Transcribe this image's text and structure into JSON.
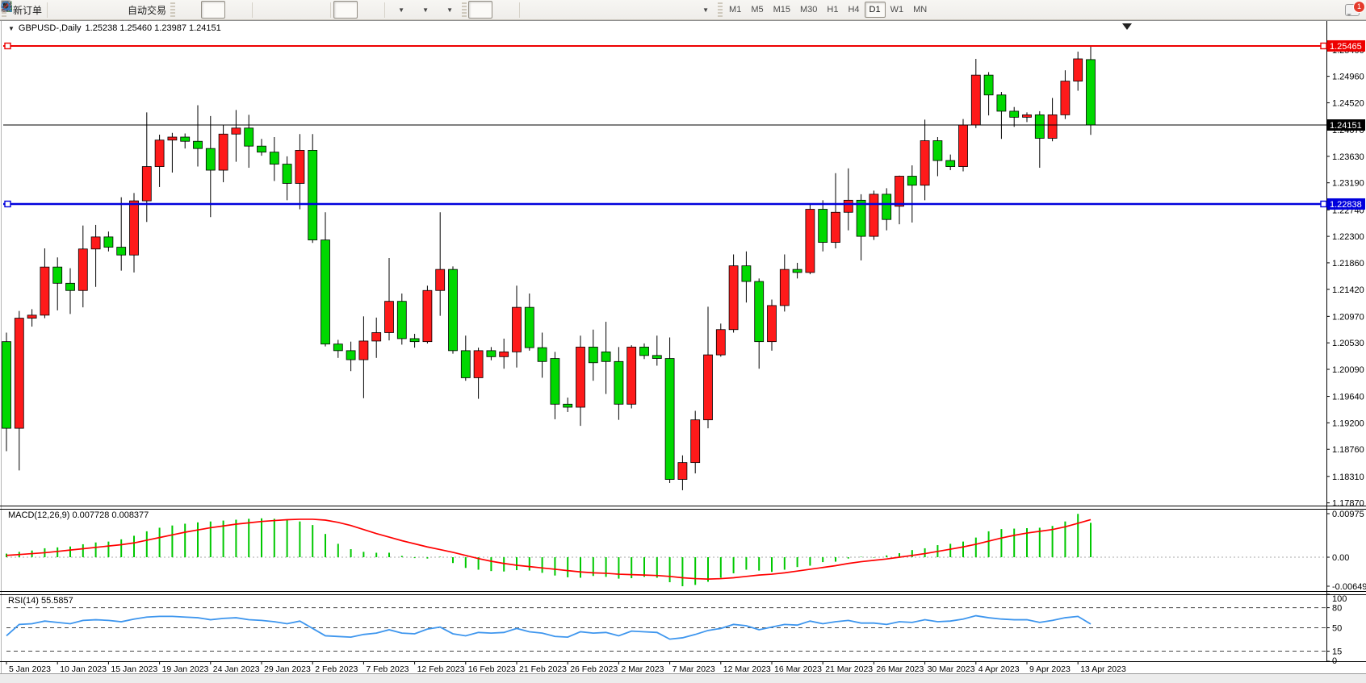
{
  "toolbar": {
    "new_order_label": "新订单",
    "auto_trading_label": "自动交易",
    "timeframes": [
      "M1",
      "M5",
      "M15",
      "M30",
      "H1",
      "H4",
      "D1",
      "W1",
      "MN"
    ],
    "active_timeframe": "D1",
    "notification_badge": "1"
  },
  "chart": {
    "title_symbol": "GBPUSD-,Daily",
    "title_ohlc": "1.25238 1.25460 1.23987 1.24151",
    "macd_label": "MACD(12,26,9) 0.007728 0.008377",
    "rsi_label": "RSI(14) 55.5857"
  },
  "chart_data": {
    "type": "candlestick",
    "symbol": "GBPUSD-",
    "timeframe": "Daily",
    "color_convention": {
      "up_body": "#fe1a1a",
      "down_body": "#00d800",
      "outline": "#000000",
      "note": "red = up, green = down"
    },
    "last_bar_ohlc": {
      "open": 1.25238,
      "high": 1.2546,
      "low": 1.23987,
      "close": 1.24151
    },
    "visible_price_range": [
      1.1785,
      1.2587
    ],
    "price_axis_ticks": [
      "1.25400",
      "1.24960",
      "1.24520",
      "1.24070",
      "1.23630",
      "1.23190",
      "1.22740",
      "1.22300",
      "1.21860",
      "1.21420",
      "1.20970",
      "1.20530",
      "1.20090",
      "1.19640",
      "1.19200",
      "1.18760",
      "1.18310",
      "1.17870"
    ],
    "hlines": [
      {
        "price": 1.25465,
        "label": "1.25465",
        "color": "#ee0000",
        "width": 2,
        "handles": true
      },
      {
        "price": 1.24151,
        "label": "1.24151",
        "color": "#000000",
        "width": 1,
        "handles": false
      },
      {
        "price": 1.22838,
        "label": "1.22838",
        "color": "#0000dd",
        "width": 2.5,
        "handles": true
      }
    ],
    "date_ticks": [
      "5 Jan 2023",
      "10 Jan 2023",
      "15 Jan 2023",
      "19 Jan 2023",
      "24 Jan 2023",
      "29 Jan 2023",
      "2 Feb 2023",
      "7 Feb 2023",
      "12 Feb 2023",
      "16 Feb 2023",
      "21 Feb 2023",
      "26 Feb 2023",
      "2 Mar 2023",
      "7 Mar 2023",
      "12 Mar 2023",
      "16 Mar 2023",
      "21 Mar 2023",
      "26 Mar 2023",
      "30 Mar 2023",
      "4 Apr 2023",
      "9 Apr 2023",
      "13 Apr 2023"
    ],
    "date_tick_every_n_bars": 4,
    "candles": [
      [
        "5 Jan",
        1.2055,
        1.207,
        1.1873,
        1.1911
      ],
      [
        "6 Jan",
        1.1911,
        1.2106,
        1.1841,
        1.2094
      ],
      [
        "8 Jan",
        1.2094,
        1.2109,
        1.208,
        1.2099
      ],
      [
        "9 Jan",
        1.2099,
        1.221,
        1.2094,
        1.2179
      ],
      [
        "10 Jan",
        1.2179,
        1.2195,
        1.2107,
        1.2152
      ],
      [
        "11 Jan",
        1.2152,
        1.2177,
        1.2101,
        1.214
      ],
      [
        "12 Jan",
        1.214,
        1.2248,
        1.2112,
        1.2209
      ],
      [
        "13 Jan",
        1.2209,
        1.2249,
        1.2146,
        1.2229
      ],
      [
        "15 Jan",
        1.2229,
        1.2238,
        1.2205,
        1.2212
      ],
      [
        "16 Jan",
        1.2212,
        1.2295,
        1.2173,
        1.2199
      ],
      [
        "17 Jan",
        1.2199,
        1.2302,
        1.217,
        1.2289
      ],
      [
        "18 Jan",
        1.2289,
        1.2436,
        1.2254,
        1.2346
      ],
      [
        "19 Jan",
        1.2346,
        1.2399,
        1.2312,
        1.239
      ],
      [
        "20 Jan",
        1.239,
        1.2402,
        1.2336,
        1.2395
      ],
      [
        "22 Jan",
        1.2395,
        1.2401,
        1.2376,
        1.2388
      ],
      [
        "23 Jan",
        1.2388,
        1.2448,
        1.2346,
        1.2376
      ],
      [
        "24 Jan",
        1.2376,
        1.243,
        1.2262,
        1.234
      ],
      [
        "25 Jan",
        1.234,
        1.2415,
        1.232,
        1.24
      ],
      [
        "26 Jan",
        1.24,
        1.244,
        1.2354,
        1.241
      ],
      [
        "27 Jan",
        1.241,
        1.2432,
        1.2344,
        1.238
      ],
      [
        "29 Jan",
        1.238,
        1.2392,
        1.2364,
        1.237
      ],
      [
        "30 Jan",
        1.237,
        1.2395,
        1.2322,
        1.235
      ],
      [
        "31 Jan",
        1.235,
        1.2363,
        1.229,
        1.2318
      ],
      [
        "1 Feb",
        1.2318,
        1.24,
        1.2275,
        1.2373
      ],
      [
        "2 Feb",
        1.2373,
        1.24,
        1.2219,
        1.2224
      ],
      [
        "3 Feb",
        1.2224,
        1.227,
        1.2047,
        1.2051
      ],
      [
        "5 Feb",
        1.2051,
        1.2058,
        1.2028,
        1.204
      ],
      [
        "6 Feb",
        1.204,
        1.2055,
        1.2006,
        1.2025
      ],
      [
        "7 Feb",
        1.2025,
        1.2097,
        1.1961,
        1.2056
      ],
      [
        "8 Feb",
        1.2056,
        1.2095,
        1.2028,
        1.207
      ],
      [
        "9 Feb",
        1.207,
        1.2194,
        1.2057,
        1.2122
      ],
      [
        "10 Feb",
        1.2122,
        1.2135,
        1.205,
        1.206
      ],
      [
        "12 Feb",
        1.206,
        1.2068,
        1.2045,
        1.2055
      ],
      [
        "13 Feb",
        1.2055,
        1.2148,
        1.2052,
        1.214
      ],
      [
        "14 Feb",
        1.214,
        1.227,
        1.2098,
        1.2175
      ],
      [
        "15 Feb",
        1.2175,
        1.218,
        1.2035,
        1.204
      ],
      [
        "16 Feb",
        1.204,
        1.2065,
        1.199,
        1.1995
      ],
      [
        "17 Feb",
        1.1995,
        1.2045,
        1.196,
        1.204
      ],
      [
        "19 Feb",
        1.204,
        1.2046,
        1.2024,
        1.203
      ],
      [
        "20 Feb",
        1.203,
        1.206,
        1.201,
        1.2038
      ],
      [
        "21 Feb",
        1.2038,
        1.2148,
        1.2012,
        1.2112
      ],
      [
        "22 Feb",
        1.2112,
        1.2135,
        1.204,
        1.2045
      ],
      [
        "23 Feb",
        1.2045,
        1.207,
        1.1995,
        1.2022
      ],
      [
        "24 Feb",
        1.2027,
        1.2038,
        1.1926,
        1.1951
      ],
      [
        "26 Feb",
        1.1951,
        1.1962,
        1.1938,
        1.1946
      ],
      [
        "27 Feb",
        1.1946,
        1.2065,
        1.1915,
        1.2046
      ],
      [
        "28 Feb",
        1.2046,
        1.2075,
        1.199,
        1.202
      ],
      [
        "1 Mar",
        1.2038,
        1.2088,
        1.1968,
        1.2022
      ],
      [
        "2 Mar",
        1.2022,
        1.2046,
        1.1925,
        1.1951
      ],
      [
        "3 Mar",
        1.1951,
        1.2049,
        1.1944,
        1.2046
      ],
      [
        "5 Mar",
        1.2046,
        1.2052,
        1.2026,
        1.2032
      ],
      [
        "6 Mar",
        1.2032,
        1.2065,
        1.2015,
        1.2027
      ],
      [
        "7 Mar",
        1.2027,
        1.2062,
        1.182,
        1.1826
      ],
      [
        "8 Mar",
        1.1826,
        1.1866,
        1.1808,
        1.1854
      ],
      [
        "9 Mar",
        1.1854,
        1.194,
        1.1836,
        1.1925
      ],
      [
        "10 Mar",
        1.1925,
        1.2113,
        1.1911,
        1.2033
      ],
      [
        "12 Mar",
        1.2033,
        1.2085,
        1.203,
        1.2075
      ],
      [
        "13 Mar",
        1.2075,
        1.22,
        1.207,
        1.2181
      ],
      [
        "14 Mar",
        1.2181,
        1.2205,
        1.212,
        1.2155
      ],
      [
        "15 Mar",
        1.2155,
        1.216,
        1.201,
        1.2055
      ],
      [
        "16 Mar",
        1.2055,
        1.2125,
        1.204,
        1.2115
      ],
      [
        "17 Mar",
        1.2115,
        1.22,
        1.2105,
        1.2175
      ],
      [
        "19 Mar",
        1.2175,
        1.2186,
        1.216,
        1.217
      ],
      [
        "20 Mar",
        1.217,
        1.2284,
        1.2167,
        1.2275
      ],
      [
        "21 Mar",
        1.2275,
        1.229,
        1.2205,
        1.222
      ],
      [
        "22 Mar",
        1.222,
        1.2335,
        1.221,
        1.227
      ],
      [
        "23 Mar",
        1.227,
        1.2343,
        1.224,
        1.229
      ],
      [
        "24 Mar",
        1.229,
        1.23,
        1.219,
        1.223
      ],
      [
        "26 Mar",
        1.223,
        1.2306,
        1.2224,
        1.23
      ],
      [
        "27 Mar",
        1.23,
        1.231,
        1.224,
        1.2258
      ],
      [
        "28 Mar",
        1.228,
        1.2331,
        1.225,
        1.233
      ],
      [
        "29 Mar",
        1.233,
        1.2348,
        1.2253,
        1.2315
      ],
      [
        "30 Mar",
        1.2315,
        1.2424,
        1.229,
        1.2389
      ],
      [
        "31 Mar",
        1.2389,
        1.2395,
        1.233,
        1.2356
      ],
      [
        "2 Apr",
        1.2356,
        1.2366,
        1.234,
        1.2346
      ],
      [
        "3 Apr",
        1.2346,
        1.2425,
        1.2338,
        1.2415
      ],
      [
        "4 Apr",
        1.2415,
        1.2525,
        1.241,
        1.2498
      ],
      [
        "5 Apr",
        1.2498,
        1.2503,
        1.2431,
        1.2465
      ],
      [
        "6 Apr",
        1.2465,
        1.247,
        1.2392,
        1.2438
      ],
      [
        "7 Apr",
        1.2438,
        1.2445,
        1.2412,
        1.2428
      ],
      [
        "9 Apr",
        1.2428,
        1.2436,
        1.242,
        1.2432
      ],
      [
        "10 Apr",
        1.2432,
        1.2438,
        1.2344,
        1.2393
      ],
      [
        "11 Apr",
        1.2393,
        1.246,
        1.2388,
        1.2432
      ],
      [
        "12 Apr",
        1.2432,
        1.2506,
        1.2425,
        1.2488
      ],
      [
        "13 Apr",
        1.2488,
        1.2537,
        1.2472,
        1.2525
      ],
      [
        "14 Apr",
        1.25238,
        1.2546,
        1.23987,
        1.24151
      ]
    ],
    "macd": {
      "params": "12,26,9",
      "main_value": 0.007728,
      "signal_value": 0.008377,
      "axis_labels": [
        "0.00975",
        "0.00",
        "-0.006494"
      ],
      "axis_max": 0.00975,
      "axis_min": -0.006494,
      "hist_color": "#00c800",
      "signal_color": "#ff0000",
      "hist": [
        0.0008,
        0.0012,
        0.0015,
        0.002,
        0.0022,
        0.0024,
        0.0029,
        0.0033,
        0.0035,
        0.004,
        0.0048,
        0.0058,
        0.0066,
        0.0071,
        0.0075,
        0.0078,
        0.008,
        0.0082,
        0.0084,
        0.0086,
        0.0087,
        0.0086,
        0.0084,
        0.008,
        0.0072,
        0.0052,
        0.003,
        0.0018,
        0.0012,
        0.001,
        0.001,
        0.0003,
        -0.0002,
        -0.0003,
        0.0001,
        -0.0013,
        -0.0024,
        -0.0028,
        -0.0031,
        -0.0032,
        -0.0029,
        -0.003,
        -0.0035,
        -0.0041,
        -0.0045,
        -0.0046,
        -0.0042,
        -0.0044,
        -0.0048,
        -0.0047,
        -0.0044,
        -0.0046,
        -0.0056,
        -0.0065,
        -0.0062,
        -0.0055,
        -0.0046,
        -0.0036,
        -0.0028,
        -0.003,
        -0.0033,
        -0.0028,
        -0.0022,
        -0.0019,
        -0.0011,
        -0.001,
        -0.0003,
        0.0001,
        -0.0001,
        0.0004,
        0.0009,
        0.0016,
        0.002,
        0.0027,
        0.003,
        0.0035,
        0.0044,
        0.0058,
        0.0063,
        0.0064,
        0.0065,
        0.0066,
        0.007,
        0.008,
        0.0097,
        0.0077
      ],
      "signal": [
        0.0004,
        0.0006,
        0.0008,
        0.001,
        0.0013,
        0.0016,
        0.0019,
        0.0022,
        0.0025,
        0.0028,
        0.0032,
        0.0038,
        0.0044,
        0.005,
        0.0056,
        0.0061,
        0.0066,
        0.007,
        0.0074,
        0.0077,
        0.008,
        0.0082,
        0.0084,
        0.0085,
        0.0085,
        0.0083,
        0.0078,
        0.0071,
        0.0062,
        0.0053,
        0.0045,
        0.0037,
        0.003,
        0.0023,
        0.0017,
        0.0011,
        0.0004,
        -0.0003,
        -0.0009,
        -0.0014,
        -0.0018,
        -0.0021,
        -0.0024,
        -0.0027,
        -0.003,
        -0.0033,
        -0.0035,
        -0.0036,
        -0.0038,
        -0.0039,
        -0.004,
        -0.0041,
        -0.0043,
        -0.0046,
        -0.0048,
        -0.0049,
        -0.0048,
        -0.0046,
        -0.0043,
        -0.004,
        -0.0038,
        -0.0035,
        -0.0031,
        -0.0027,
        -0.0023,
        -0.0019,
        -0.0014,
        -0.001,
        -0.0007,
        -0.0004,
        0.0,
        0.0004,
        0.0008,
        0.0013,
        0.0018,
        0.0023,
        0.0029,
        0.0036,
        0.0043,
        0.0049,
        0.0054,
        0.0058,
        0.0062,
        0.0068,
        0.0076,
        0.0084
      ]
    },
    "rsi": {
      "period": 14,
      "current_value": 55.5857,
      "line_color": "#3e96ee",
      "levels": [
        80,
        50,
        15
      ],
      "axis_labels": [
        "100",
        "80",
        "50",
        "15",
        "0"
      ],
      "values": [
        38,
        55,
        56,
        60,
        58,
        56,
        61,
        62,
        61,
        59,
        63,
        66,
        67,
        67,
        66,
        65,
        62,
        64,
        65,
        62,
        61,
        59,
        56,
        60,
        49,
        38,
        37,
        36,
        40,
        42,
        47,
        42,
        41,
        48,
        51,
        41,
        38,
        43,
        42,
        43,
        49,
        44,
        42,
        37,
        36,
        44,
        42,
        43,
        38,
        45,
        44,
        43,
        33,
        35,
        40,
        46,
        49,
        55,
        53,
        47,
        51,
        55,
        54,
        60,
        56,
        59,
        61,
        57,
        57,
        55,
        59,
        58,
        62,
        59,
        60,
        63,
        68,
        65,
        63,
        62,
        62,
        58,
        61,
        65,
        67,
        55.59
      ]
    }
  }
}
